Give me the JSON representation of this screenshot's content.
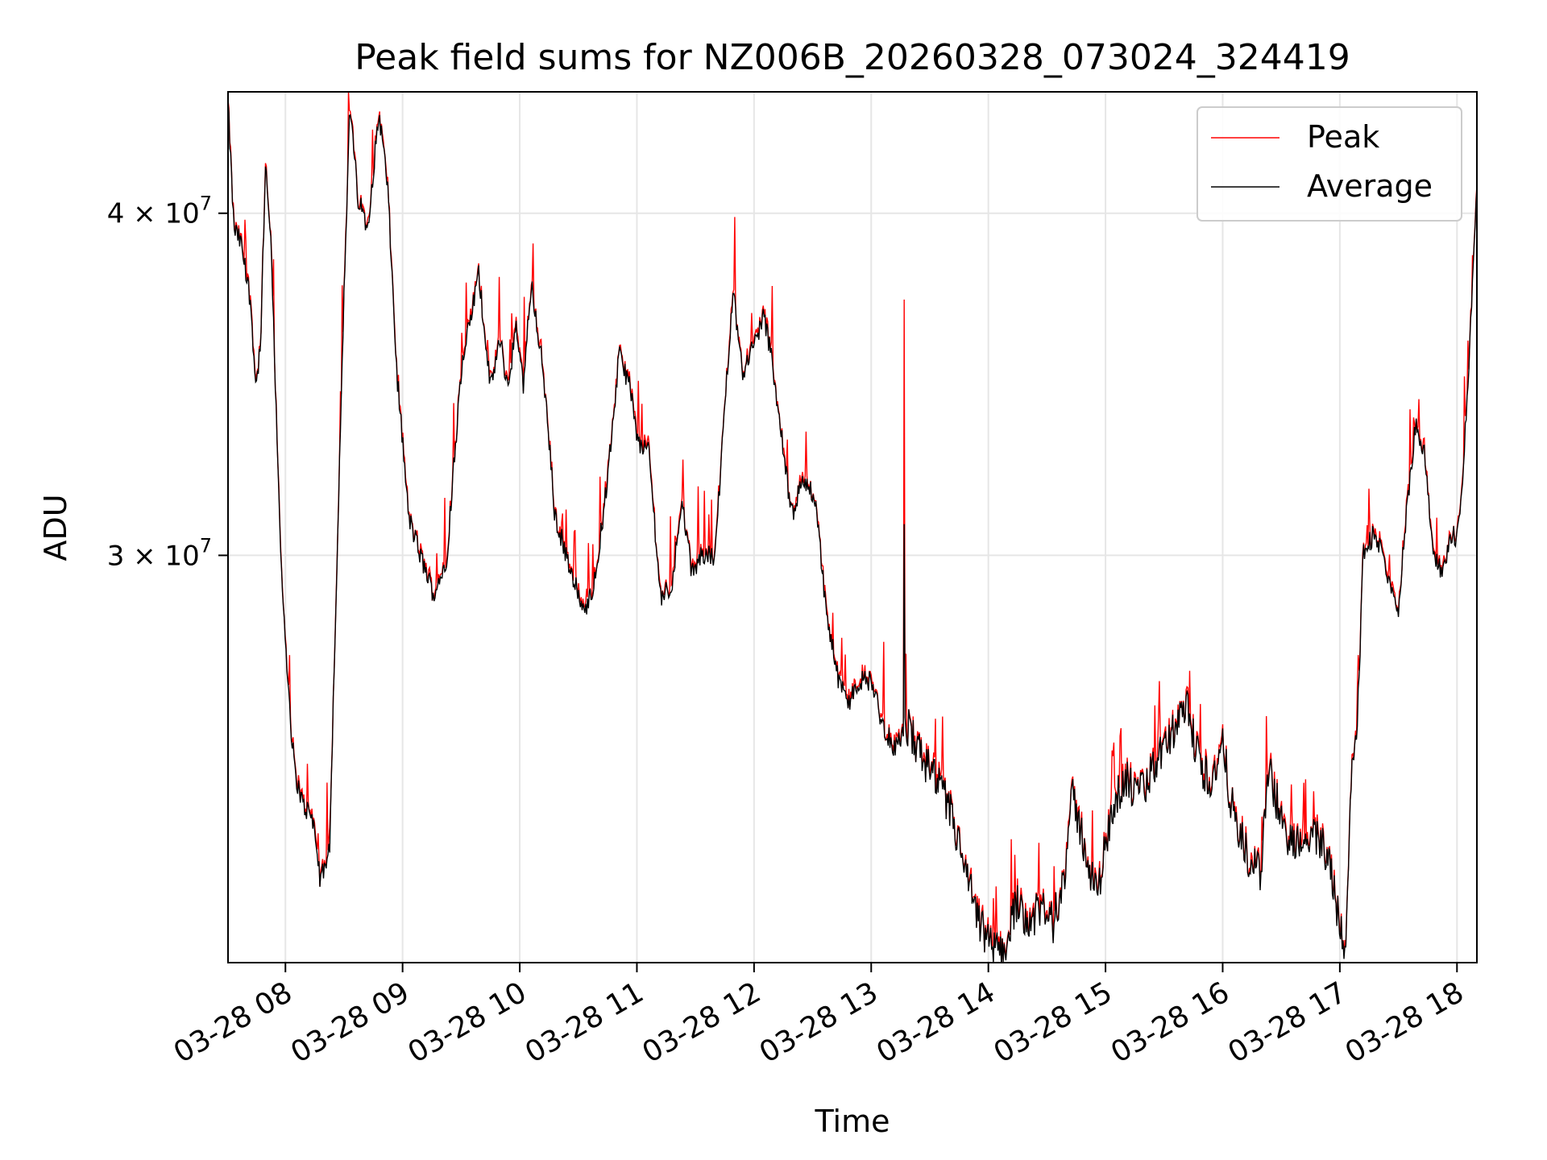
{
  "chart_data": {
    "type": "line",
    "title": "Peak field sums for NZ006B_20260328_073024_324419",
    "xlabel": "Time",
    "ylabel": "ADU",
    "y_scale": "log",
    "ylim": [
      21300000,
      44300000
    ],
    "xlim_hours": [
      7.51,
      18.17
    ],
    "grid": true,
    "legend_position": "upper right",
    "x_ticks": [
      {
        "hour": 8,
        "label": "03-28 08"
      },
      {
        "hour": 9,
        "label": "03-28 09"
      },
      {
        "hour": 10,
        "label": "03-28 10"
      },
      {
        "hour": 11,
        "label": "03-28 11"
      },
      {
        "hour": 12,
        "label": "03-28 12"
      },
      {
        "hour": 13,
        "label": "03-28 13"
      },
      {
        "hour": 14,
        "label": "03-28 14"
      },
      {
        "hour": 15,
        "label": "03-28 15"
      },
      {
        "hour": 16,
        "label": "03-28 16"
      },
      {
        "hour": 17,
        "label": "03-28 17"
      },
      {
        "hour": 18,
        "label": "03-28 18"
      }
    ],
    "y_ticks": [
      {
        "value": 30000000,
        "mantissa": "3",
        "exponent": "7"
      },
      {
        "value": 40000000,
        "mantissa": "4",
        "exponent": "7"
      }
    ],
    "series": [
      {
        "name": "Peak",
        "color": "#ff0000"
      },
      {
        "name": "Average",
        "color": "#000000"
      }
    ],
    "average_keypoints": [
      [
        7.51,
        43800000
      ],
      [
        7.56,
        39500000
      ],
      [
        7.62,
        39000000
      ],
      [
        7.7,
        37200000
      ],
      [
        7.75,
        34500000
      ],
      [
        7.79,
        36000000
      ],
      [
        7.83,
        41500000
      ],
      [
        7.87,
        39500000
      ],
      [
        7.92,
        34000000
      ],
      [
        7.97,
        29200000
      ],
      [
        8.03,
        26500000
      ],
      [
        8.08,
        25000000
      ],
      [
        8.15,
        24300000
      ],
      [
        8.23,
        24100000
      ],
      [
        8.3,
        22800000
      ],
      [
        8.38,
        23500000
      ],
      [
        8.45,
        31000000
      ],
      [
        8.55,
        43700000
      ],
      [
        8.62,
        40500000
      ],
      [
        8.7,
        39500000
      ],
      [
        8.8,
        43500000
      ],
      [
        8.87,
        41000000
      ],
      [
        8.95,
        35000000
      ],
      [
        9.05,
        31000000
      ],
      [
        9.15,
        30000000
      ],
      [
        9.27,
        29000000
      ],
      [
        9.38,
        30000000
      ],
      [
        9.5,
        35000000
      ],
      [
        9.6,
        37000000
      ],
      [
        9.65,
        38000000
      ],
      [
        9.75,
        34500000
      ],
      [
        9.83,
        36000000
      ],
      [
        9.9,
        34500000
      ],
      [
        9.97,
        36500000
      ],
      [
        10.03,
        34600000
      ],
      [
        10.1,
        37700000
      ],
      [
        10.2,
        35000000
      ],
      [
        10.3,
        31000000
      ],
      [
        10.4,
        30000000
      ],
      [
        10.45,
        29500000
      ],
      [
        10.55,
        28500000
      ],
      [
        10.65,
        29500000
      ],
      [
        10.75,
        32000000
      ],
      [
        10.85,
        35500000
      ],
      [
        10.95,
        34500000
      ],
      [
        11.0,
        33000000
      ],
      [
        11.1,
        32800000
      ],
      [
        11.2,
        29000000
      ],
      [
        11.3,
        29200000
      ],
      [
        11.38,
        31500000
      ],
      [
        11.47,
        29500000
      ],
      [
        11.55,
        30000000
      ],
      [
        11.67,
        30000000
      ],
      [
        11.75,
        34000000
      ],
      [
        11.82,
        37500000
      ],
      [
        11.9,
        35000000
      ],
      [
        12.0,
        35800000
      ],
      [
        12.08,
        36700000
      ],
      [
        12.15,
        35500000
      ],
      [
        12.22,
        33500000
      ],
      [
        12.32,
        31000000
      ],
      [
        12.42,
        32000000
      ],
      [
        12.52,
        31500000
      ],
      [
        12.62,
        28500000
      ],
      [
        12.72,
        27000000
      ],
      [
        12.8,
        26500000
      ],
      [
        12.9,
        27000000
      ],
      [
        13.0,
        27000000
      ],
      [
        13.1,
        26000000
      ],
      [
        13.2,
        25500000
      ],
      [
        13.3,
        26000000
      ],
      [
        13.4,
        25500000
      ],
      [
        13.5,
        25000000
      ],
      [
        13.6,
        24600000
      ],
      [
        13.7,
        24000000
      ],
      [
        13.8,
        23000000
      ],
      [
        13.92,
        22000000
      ],
      [
        14.05,
        21500000
      ],
      [
        14.15,
        21600000
      ],
      [
        14.25,
        22500000
      ],
      [
        14.35,
        22000000
      ],
      [
        14.45,
        22300000
      ],
      [
        14.55,
        22000000
      ],
      [
        14.65,
        23000000
      ],
      [
        14.72,
        24500000
      ],
      [
        14.82,
        23500000
      ],
      [
        14.92,
        22500000
      ],
      [
        15.0,
        23500000
      ],
      [
        15.08,
        24500000
      ],
      [
        15.18,
        24800000
      ],
      [
        15.28,
        24500000
      ],
      [
        15.4,
        25000000
      ],
      [
        15.5,
        25500000
      ],
      [
        15.6,
        26000000
      ],
      [
        15.7,
        26300000
      ],
      [
        15.8,
        25200000
      ],
      [
        15.9,
        24800000
      ],
      [
        16.0,
        25500000
      ],
      [
        16.1,
        24000000
      ],
      [
        16.22,
        23200000
      ],
      [
        16.32,
        23000000
      ],
      [
        16.4,
        25000000
      ],
      [
        16.5,
        24000000
      ],
      [
        16.6,
        23500000
      ],
      [
        16.7,
        23800000
      ],
      [
        16.8,
        23600000
      ],
      [
        16.9,
        23400000
      ],
      [
        17.0,
        22000000
      ],
      [
        17.05,
        21600000
      ],
      [
        17.1,
        25000000
      ],
      [
        17.15,
        26000000
      ],
      [
        17.2,
        30000000
      ],
      [
        17.28,
        30500000
      ],
      [
        17.35,
        30200000
      ],
      [
        17.42,
        29300000
      ],
      [
        17.5,
        28700000
      ],
      [
        17.58,
        31500000
      ],
      [
        17.65,
        33500000
      ],
      [
        17.72,
        32800000
      ],
      [
        17.8,
        30000000
      ],
      [
        17.88,
        29500000
      ],
      [
        17.95,
        30500000
      ],
      [
        18.0,
        30500000
      ],
      [
        18.05,
        32000000
      ],
      [
        18.1,
        35000000
      ],
      [
        18.17,
        41000000
      ]
    ],
    "peak_spike": {
      "hour": 13.28,
      "value": 37200000
    },
    "annotations": []
  }
}
